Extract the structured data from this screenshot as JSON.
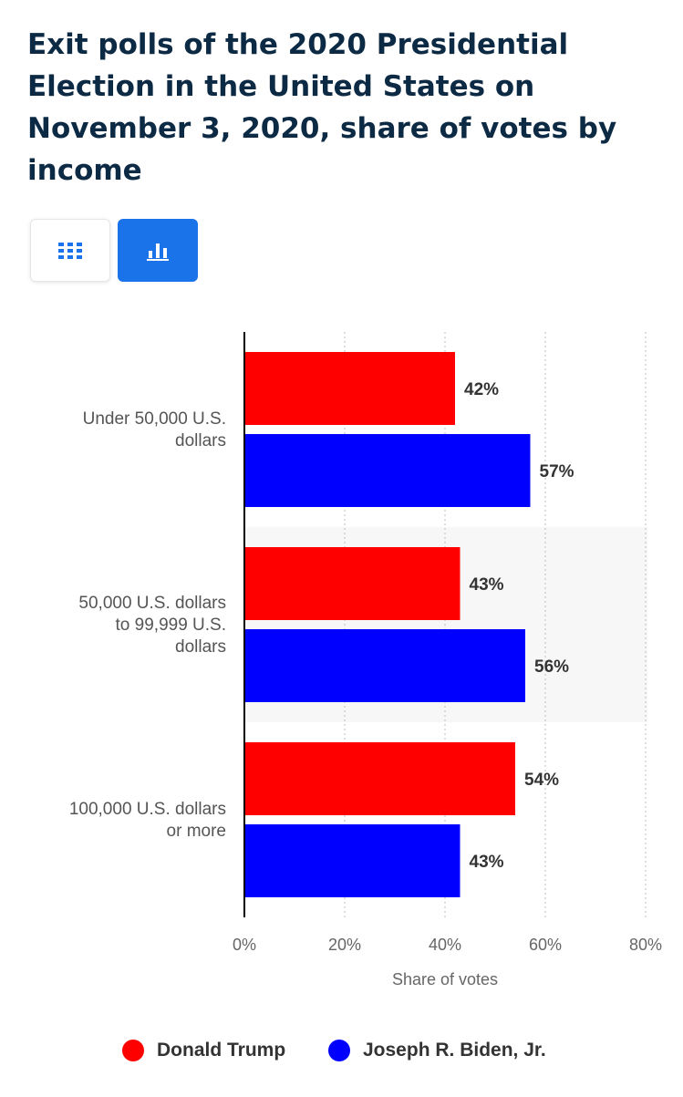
{
  "title": "Exit polls of the 2020 Presidential Election in the United States on November 3, 2020, share of votes by income",
  "view_toggle": {
    "table_icon": "grid-icon",
    "chart_icon": "bar-chart-icon",
    "active": "chart"
  },
  "colors": {
    "trump": "#ff0000",
    "biden": "#0000ff",
    "accent": "#1a73e8",
    "title": "#0d2a45"
  },
  "chart_data": {
    "type": "bar",
    "orientation": "horizontal",
    "categories": [
      [
        "Under 50,000 U.S.",
        "dollars"
      ],
      [
        "50,000 U.S. dollars",
        "to 99,999 U.S.",
        "dollars"
      ],
      [
        "100,000 U.S. dollars",
        "or more"
      ]
    ],
    "series": [
      {
        "name": "Donald Trump",
        "color": "#ff0000",
        "values": [
          42,
          43,
          54
        ],
        "labels": [
          "42%",
          "43%",
          "54%"
        ]
      },
      {
        "name": "Joseph R. Biden, Jr.",
        "color": "#0000ff",
        "values": [
          57,
          56,
          43
        ],
        "labels": [
          "57%",
          "56%",
          "43%"
        ]
      }
    ],
    "xlabel": "Share of votes",
    "xlim": [
      0,
      80
    ],
    "xticks": [
      0,
      20,
      40,
      60,
      80
    ],
    "xtick_labels": [
      "0%",
      "20%",
      "40%",
      "60%",
      "80%"
    ],
    "grid": "vertical dotted",
    "legend_position": "bottom"
  }
}
